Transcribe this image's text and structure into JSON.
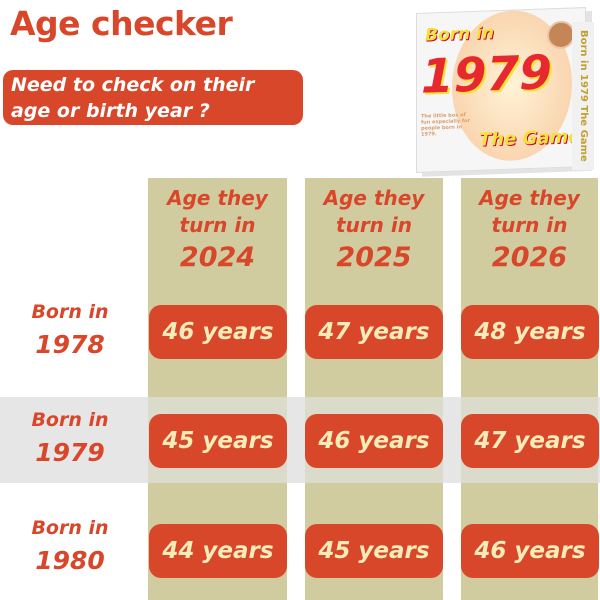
{
  "title": "Age checker",
  "question": "Need to check on their age or birth year ?",
  "box": {
    "line1": "Born in",
    "year": "1979",
    "line2": "The Game",
    "blurb": "The little box of fun especially for people born in 1979.",
    "spine": "Born in 1979 The Game"
  },
  "columns": [
    {
      "label": "Age they turn in",
      "year": "2024"
    },
    {
      "label": "Age they turn in",
      "year": "2025"
    },
    {
      "label": "Age they turn in",
      "year": "2026"
    }
  ],
  "rows": [
    {
      "label": "Born in",
      "year": "1978",
      "ages": [
        "46 years",
        "47 years",
        "48 years"
      ]
    },
    {
      "label": "Born in",
      "year": "1979",
      "ages": [
        "45 years",
        "46 years",
        "47 years"
      ],
      "highlighted": true
    },
    {
      "label": "Born in",
      "year": "1980",
      "ages": [
        "44 years",
        "45 years",
        "46 years"
      ]
    }
  ],
  "colors": {
    "accent": "#d9472b",
    "column": "#d0cc9f",
    "highlight": "#e6e6e6",
    "pill_text": "#f5ecb8"
  }
}
